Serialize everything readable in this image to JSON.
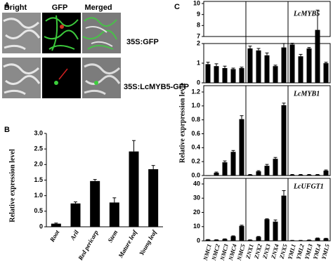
{
  "panel_labels": [
    "A",
    "B",
    "C"
  ],
  "microscopy": {
    "columns": [
      "Bright",
      "GFP",
      "Merged"
    ],
    "rows": [
      "35S:GFP",
      "35S:LcMYB5-GFP"
    ]
  },
  "chart_data": [
    {
      "type": "bar",
      "ylabel": "Relative expression level",
      "categories": [
        "Root",
        "Aril",
        "Red pericarp",
        "Stem",
        "Mature leaf",
        "Young leaf"
      ],
      "values": [
        0.1,
        0.75,
        1.47,
        0.78,
        2.42,
        1.85
      ],
      "errors": [
        0.02,
        0.05,
        0.05,
        0.15,
        0.35,
        0.12
      ],
      "color": "#000000",
      "ylim": [
        0,
        3
      ],
      "yticks": [
        0,
        0.5,
        {
          "value": 1,
          "label": "1.0"
        },
        1.5,
        {
          "value": 2,
          "label": "2.0"
        },
        2.5,
        {
          "value": 3,
          "label": "3.0"
        }
      ]
    },
    {
      "type": "bar",
      "ylabel": "Relative exprpression levle",
      "categories": [
        "NMC1",
        "NMC2",
        "NMC3",
        "NMC4",
        "NMC5",
        "ZNX1",
        "ZNX2",
        "ZNX3",
        "ZNX4",
        "ZNX5",
        "YML1",
        "YML2",
        "YML3",
        "YML4",
        "YML5"
      ],
      "color": "#000000",
      "panels": [
        {
          "annotation": "LcMYB5",
          "values": [
            0.95,
            0.85,
            0.75,
            0.7,
            0.75,
            1.75,
            1.65,
            1.4,
            0.85,
            1.8,
            1.95,
            1.35,
            1.75,
            7.6,
            1.0
          ],
          "errors": [
            0.1,
            0.12,
            0.1,
            0.05,
            0.05,
            0.12,
            0.1,
            0.12,
            0.05,
            0.25,
            0.3,
            0.1,
            0.05,
            1.8,
            0.05
          ],
          "ylim": [
            0,
            10
          ],
          "axis_break": [
            2,
            7
          ],
          "yticks": [
            0,
            1,
            2,
            7,
            8,
            9,
            10
          ]
        },
        {
          "annotation": "LcMYB1",
          "values": [
            0,
            0.04,
            0.19,
            0.34,
            0.81,
            0.01,
            0.06,
            0.14,
            0.24,
            1.01,
            0.01,
            0.01,
            0.01,
            0.01,
            0.07
          ],
          "errors": [
            0,
            0.01,
            0.02,
            0.02,
            0.05,
            0.005,
            0.01,
            0.02,
            0.02,
            0.03,
            0.005,
            0.005,
            0.005,
            0.005,
            0.01
          ],
          "ylim": [
            0,
            1.2
          ],
          "yticks": [
            {
              "value": 0,
              "label": "0.0"
            },
            0.2,
            0.4,
            0.6,
            0.8,
            {
              "value": 1,
              "label": "1.0"
            },
            1.2
          ]
        },
        {
          "annotation": "LcUFGT1",
          "values": [
            0.8,
            0.7,
            1.2,
            3.2,
            10.5,
            0.6,
            2.8,
            15.2,
            13.5,
            31.8,
            0.3,
            0.3,
            0.5,
            1.8,
            1.6
          ],
          "errors": [
            0.1,
            0.1,
            0.2,
            0.3,
            0.5,
            0.1,
            0.3,
            0.3,
            1.2,
            3.5,
            0.05,
            0.05,
            0.1,
            0.2,
            0.2
          ],
          "ylim": [
            0,
            40
          ],
          "yticks": [
            0,
            10,
            20,
            30,
            40
          ]
        }
      ]
    }
  ]
}
